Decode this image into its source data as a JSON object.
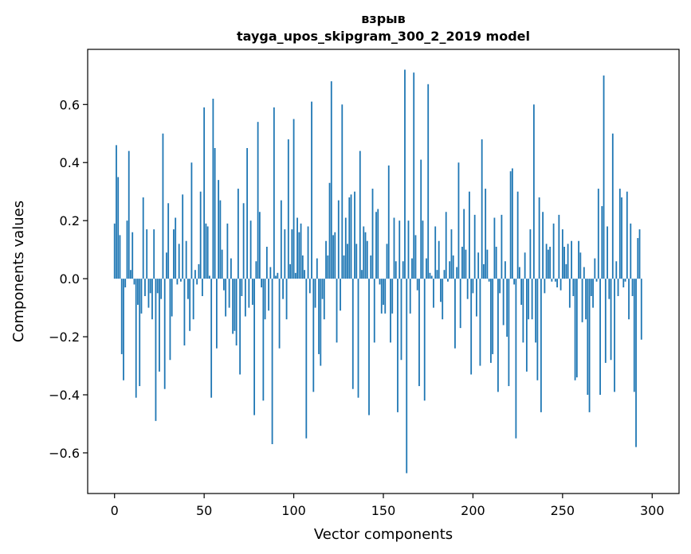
{
  "chart_data": {
    "type": "bar",
    "title_line1": "взрыв",
    "title_line2": "tayga_upos_skipgram_300_2_2019 model",
    "xlabel": "Vector components",
    "ylabel": "Components values",
    "xlim": [
      -15,
      315
    ],
    "ylim": [
      -0.74,
      0.79
    ],
    "x_ticks": [
      0,
      50,
      100,
      150,
      200,
      250,
      300
    ],
    "x_tick_labels": [
      "0",
      "50",
      "100",
      "150",
      "200",
      "250",
      "300"
    ],
    "y_ticks": [
      -0.6,
      -0.4,
      -0.2,
      0.0,
      0.2,
      0.4,
      0.6
    ],
    "y_tick_labels": [
      "−0.6",
      "−0.4",
      "−0.2",
      "0.0",
      "0.2",
      "0.4",
      "0.6"
    ],
    "bar_color": "#1f77b4",
    "values": [
      0.19,
      0.46,
      0.35,
      0.15,
      -0.26,
      -0.35,
      -0.03,
      0.2,
      0.44,
      0.03,
      0.16,
      -0.02,
      -0.41,
      -0.09,
      -0.37,
      -0.12,
      0.28,
      -0.06,
      0.17,
      -0.1,
      -0.05,
      -0.14,
      0.17,
      -0.49,
      -0.05,
      -0.32,
      -0.07,
      0.5,
      -0.38,
      0.09,
      0.26,
      -0.28,
      -0.13,
      0.17,
      0.21,
      -0.02,
      0.12,
      -0.01,
      0.29,
      -0.23,
      0.13,
      -0.07,
      -0.18,
      0.4,
      -0.14,
      0.03,
      -0.02,
      0.05,
      0.3,
      -0.06,
      0.59,
      0.19,
      0.18,
      0.01,
      -0.41,
      0.62,
      0.45,
      -0.24,
      0.34,
      0.27,
      0.1,
      -0.04,
      -0.13,
      0.19,
      -0.1,
      0.07,
      -0.19,
      -0.18,
      -0.23,
      0.31,
      -0.33,
      -0.06,
      0.26,
      -0.13,
      0.45,
      -0.1,
      0.2,
      -0.09,
      -0.47,
      0.06,
      0.54,
      0.23,
      -0.03,
      -0.42,
      -0.14,
      0.11,
      -0.11,
      0.04,
      -0.57,
      0.59,
      0.01,
      0.02,
      -0.24,
      0.27,
      -0.07,
      0.17,
      -0.14,
      0.48,
      0.05,
      0.17,
      0.55,
      0.02,
      0.21,
      0.16,
      0.19,
      0.08,
      0.03,
      -0.55,
      0.18,
      -0.05,
      0.61,
      -0.39,
      -0.1,
      0.07,
      -0.26,
      -0.3,
      -0.07,
      -0.14,
      0.13,
      0.08,
      0.33,
      0.68,
      0.15,
      0.16,
      -0.22,
      0.27,
      -0.11,
      0.6,
      0.08,
      0.21,
      0.12,
      0.28,
      0.29,
      -0.38,
      0.3,
      0.12,
      -0.41,
      0.44,
      0.03,
      0.18,
      0.16,
      0.13,
      -0.47,
      0.08,
      0.31,
      -0.22,
      0.23,
      0.24,
      -0.02,
      -0.12,
      -0.09,
      -0.12,
      0.12,
      0.39,
      -0.22,
      -0.12,
      0.21,
      0.06,
      -0.46,
      0.2,
      -0.28,
      0.06,
      0.72,
      -0.67,
      0.2,
      -0.12,
      0.07,
      0.71,
      0.15,
      -0.04,
      -0.37,
      0.41,
      0.2,
      -0.42,
      0.07,
      0.67,
      0.02,
      0.01,
      -0.1,
      0.18,
      0.03,
      0.13,
      -0.08,
      -0.14,
      0.03,
      0.23,
      -0.01,
      0.06,
      0.17,
      0.08,
      -0.24,
      0.04,
      0.4,
      -0.17,
      0.11,
      0.24,
      0.1,
      -0.07,
      0.3,
      -0.33,
      -0.05,
      0.22,
      -0.13,
      0.09,
      -0.3,
      0.48,
      0.05,
      0.31,
      0.1,
      -0.01,
      -0.29,
      -0.26,
      0.21,
      0.11,
      -0.39,
      -0.05,
      0.22,
      -0.16,
      0.06,
      -0.2,
      -0.37,
      0.37,
      0.38,
      -0.02,
      -0.55,
      0.3,
      0.04,
      -0.09,
      -0.22,
      0.09,
      -0.32,
      -0.14,
      0.17,
      -0.14,
      0.6,
      -0.22,
      -0.35,
      0.28,
      -0.46,
      0.23,
      -0.05,
      0.12,
      0.1,
      0.11,
      -0.01,
      0.19,
      -0.01,
      -0.03,
      0.22,
      -0.04,
      0.17,
      0.11,
      0.05,
      0.12,
      -0.1,
      0.13,
      -0.06,
      -0.35,
      -0.34,
      0.13,
      0.09,
      -0.15,
      0.04,
      -0.14,
      -0.4,
      -0.46,
      -0.06,
      -0.1,
      0.07,
      -0.01,
      0.31,
      -0.4,
      0.25,
      0.7,
      -0.29,
      0.18,
      -0.07,
      -0.28,
      0.5,
      -0.39,
      0.06,
      -0.06,
      0.31,
      0.28,
      -0.03,
      -0.01,
      0.3,
      -0.14,
      0.19,
      -0.06,
      -0.39,
      -0.58,
      0.14,
      0.17,
      -0.21
    ]
  }
}
